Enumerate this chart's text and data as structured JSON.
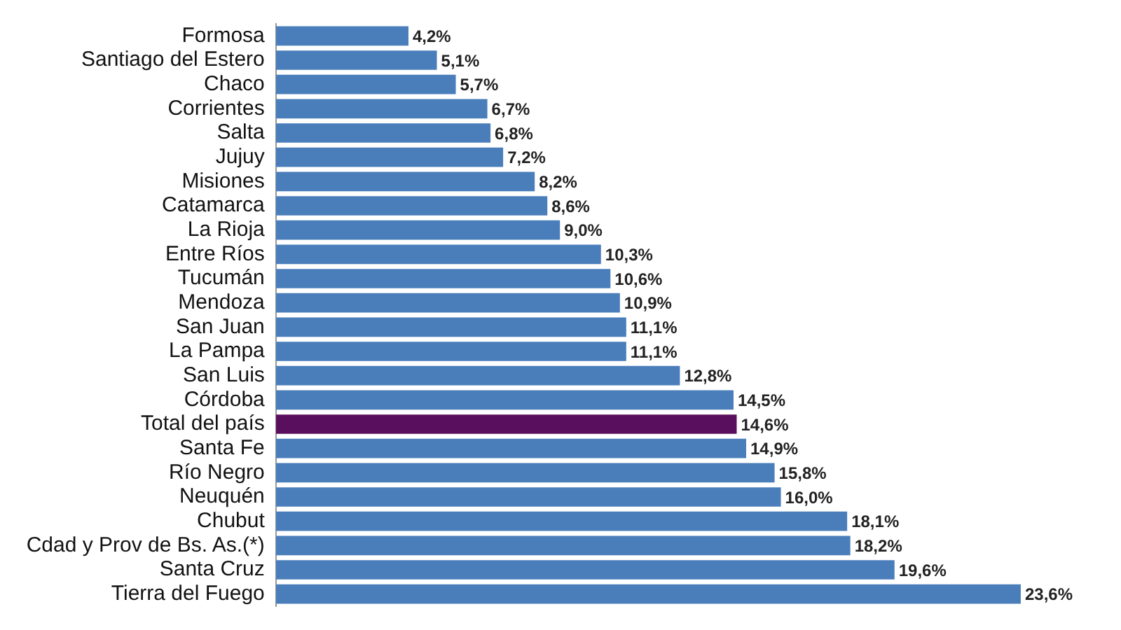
{
  "chart_data": {
    "type": "bar",
    "orientation": "horizontal",
    "categories": [
      "Formosa",
      "Santiago del Estero",
      "Chaco",
      "Corrientes",
      "Salta",
      "Jujuy",
      "Misiones",
      "Catamarca",
      "La Rioja",
      "Entre Ríos",
      "Tucumán",
      "Mendoza",
      "San Juan",
      "La Pampa",
      "San Luis",
      "Córdoba",
      "Total del país",
      "Santa Fe",
      "Río Negro",
      "Neuquén",
      "Chubut",
      "Cdad y Prov de Bs. As.(*)",
      "Santa Cruz",
      "Tierra del Fuego"
    ],
    "values": [
      4.2,
      5.1,
      5.7,
      6.7,
      6.8,
      7.2,
      8.2,
      8.6,
      9.0,
      10.3,
      10.6,
      10.9,
      11.1,
      11.1,
      12.8,
      14.5,
      14.6,
      14.9,
      15.8,
      16.0,
      18.1,
      18.2,
      19.6,
      23.6
    ],
    "value_labels": [
      "4,2%",
      "5,1%",
      "5,7%",
      "6,7%",
      "6,8%",
      "7,2%",
      "8,2%",
      "8,6%",
      "9,0%",
      "10,3%",
      "10,6%",
      "10,9%",
      "11,1%",
      "11,1%",
      "12,8%",
      "14,5%",
      "14,6%",
      "14,9%",
      "15,8%",
      "16,0%",
      "18,1%",
      "18,2%",
      "19,6%",
      "23,6%"
    ],
    "colors": [
      "#4a7ebb",
      "#4a7ebb",
      "#4a7ebb",
      "#4a7ebb",
      "#4a7ebb",
      "#4a7ebb",
      "#4a7ebb",
      "#4a7ebb",
      "#4a7ebb",
      "#4a7ebb",
      "#4a7ebb",
      "#4a7ebb",
      "#4a7ebb",
      "#4a7ebb",
      "#4a7ebb",
      "#4a7ebb",
      "#5a0f5e",
      "#4a7ebb",
      "#4a7ebb",
      "#4a7ebb",
      "#4a7ebb",
      "#4a7ebb",
      "#4a7ebb",
      "#4a7ebb"
    ],
    "legend": false
  }
}
